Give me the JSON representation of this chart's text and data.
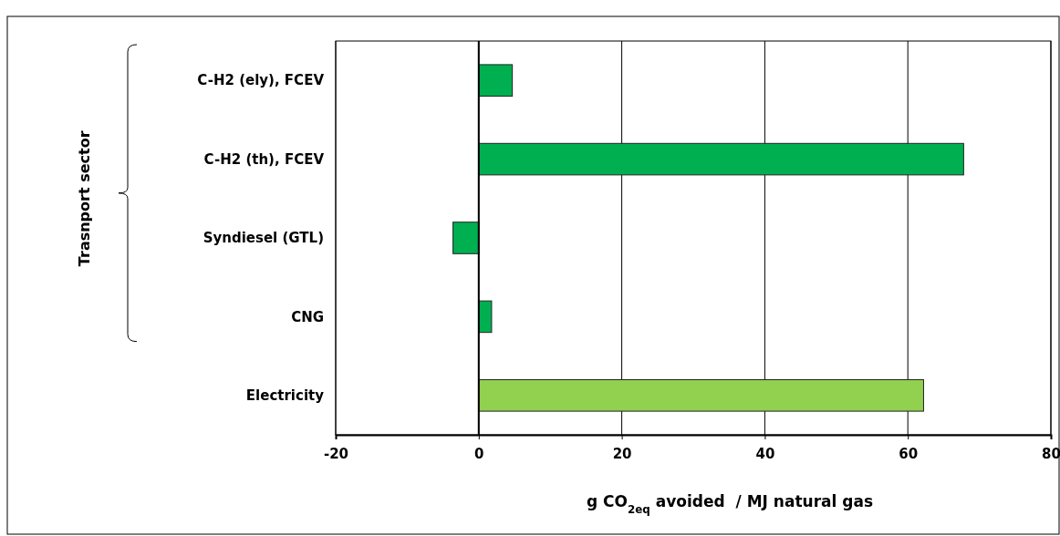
{
  "chart_data": {
    "type": "bar",
    "orientation": "horizontal",
    "categories": [
      "C-H2 (ely), FCEV",
      "C-H2 (th), FCEV",
      "Syndiesel (GTL)",
      "CNG",
      "Electricity"
    ],
    "values": [
      4.7,
      67.8,
      -3.6,
      1.8,
      62.2
    ],
    "colors": [
      "#00b050",
      "#00b050",
      "#00b050",
      "#00b050",
      "#92d050"
    ],
    "xlim": [
      -20,
      80
    ],
    "xticks": [
      -20,
      0,
      20,
      40,
      60,
      80
    ],
    "grid": "x",
    "xlabel": "g CO$_{2eq}$ avoided  / MJ natural gas",
    "annotations": [
      "Trasnport sector"
    ]
  }
}
